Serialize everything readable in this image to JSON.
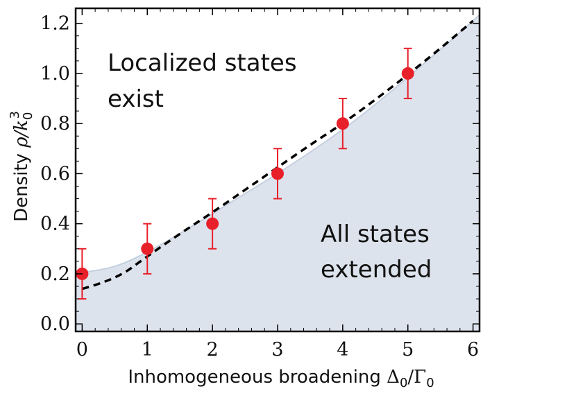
{
  "chart_data": {
    "type": "scatter",
    "xlabel": "Inhomogeneous broadening Δ0/Γ0",
    "xlabel_parts": {
      "text": "Inhomogeneous broadening ",
      "sym": "Δ",
      "sub1": "0",
      "slash": "/Γ",
      "sub2": "0"
    },
    "ylabel": "Density ρ/k0^3",
    "ylabel_parts": {
      "text": "Density ",
      "sym": "ρ/k",
      "sub": "0",
      "sup": "3"
    },
    "xlim": [
      -0.1,
      6.1
    ],
    "ylim": [
      -0.03,
      1.26
    ],
    "x_ticks": [
      0,
      1,
      2,
      3,
      4,
      5,
      6
    ],
    "x_tick_labels": [
      "0",
      "1",
      "2",
      "3",
      "4",
      "5",
      "6"
    ],
    "y_ticks": [
      0.0,
      0.2,
      0.4,
      0.6,
      0.8,
      1.0,
      1.2
    ],
    "y_tick_labels": [
      "0.0",
      "0.2",
      "0.4",
      "0.6",
      "0.8",
      "1.0",
      "1.2"
    ],
    "series": [
      {
        "kind": "points_with_errorbars",
        "color": "#e8202a",
        "x": [
          0,
          1,
          2,
          3,
          4,
          5
        ],
        "y": [
          0.2,
          0.3,
          0.4,
          0.6,
          0.8,
          1.0
        ],
        "err_low": [
          0.1,
          0.1,
          0.1,
          0.1,
          0.1,
          0.1
        ],
        "err_high": [
          0.1,
          0.1,
          0.1,
          0.1,
          0.1,
          0.1
        ]
      },
      {
        "kind": "dashed_line",
        "color": "#000000",
        "x": [
          0,
          0.5,
          1,
          1.5,
          2,
          2.5,
          3,
          3.5,
          4,
          4.5,
          5,
          5.5,
          6
        ],
        "y": [
          0.14,
          0.175,
          0.27,
          0.36,
          0.445,
          0.535,
          0.625,
          0.715,
          0.8,
          0.895,
          0.995,
          1.1,
          1.21
        ]
      },
      {
        "kind": "filled_area",
        "color": "#dde3ec",
        "edge_color": "#c4cfe0",
        "x": [
          -0.1,
          0,
          0.5,
          1,
          1.5,
          2,
          2.5,
          3,
          3.5,
          4,
          4.5,
          5,
          5.5,
          6,
          6.1
        ],
        "y": [
          0.2,
          0.205,
          0.225,
          0.285,
          0.36,
          0.44,
          0.52,
          0.6,
          0.685,
          0.775,
          0.875,
          0.985,
          1.095,
          1.21,
          1.235
        ]
      }
    ],
    "annotations": [
      {
        "lines": [
          "Localized states",
          "exist"
        ]
      },
      {
        "lines": [
          "All states",
          "extended"
        ]
      }
    ],
    "grid": false
  }
}
